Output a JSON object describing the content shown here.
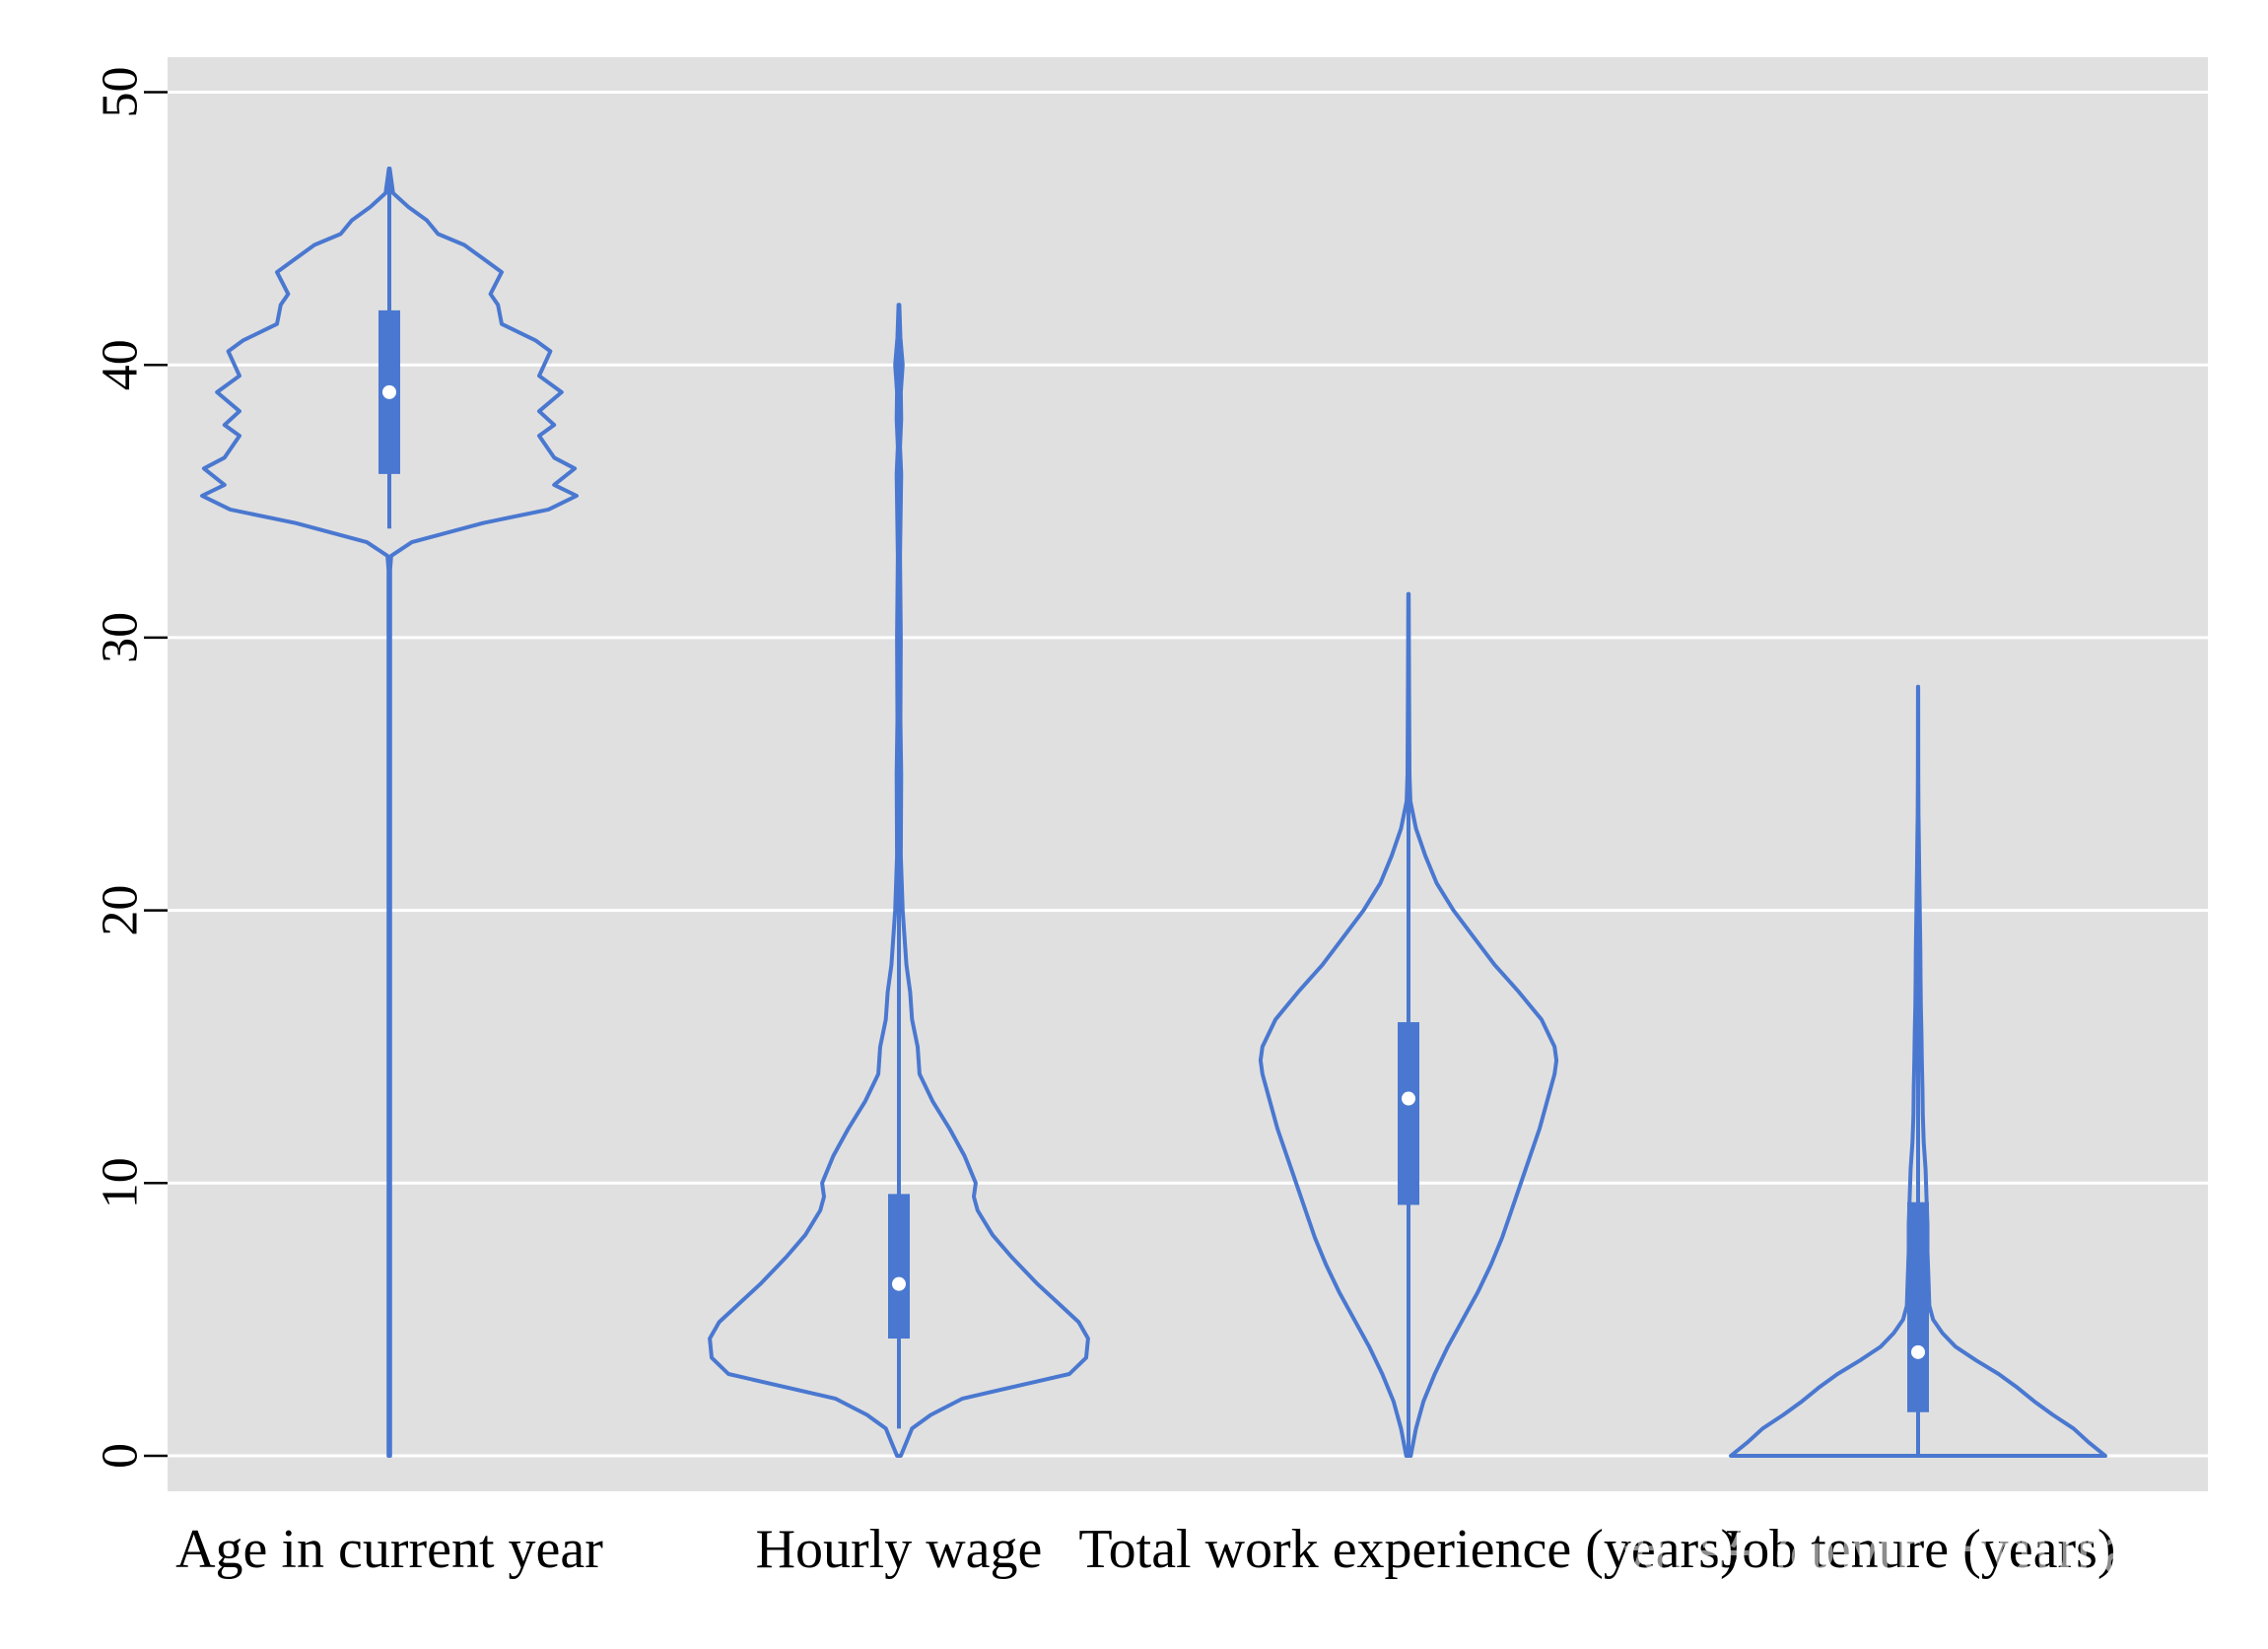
{
  "watermark": "知乎 @Mr Figurant",
  "chart_data": {
    "type": "violin",
    "title": "",
    "xlabel": "",
    "ylabel": "",
    "ylim": [
      0,
      50
    ],
    "yticks": [
      0,
      10,
      20,
      30,
      40,
      50
    ],
    "ytick_labels": [
      "0",
      "10",
      "20",
      "30",
      "40",
      "50"
    ],
    "grid": true,
    "colors": {
      "violin": "#4a78d0",
      "background": "#e0e0e0",
      "grid": "#ffffff",
      "median": "#ffffff"
    },
    "series": [
      {
        "name": "Age in current year",
        "min": 0,
        "q1": 36,
        "median": 39,
        "q3": 42,
        "whisker_low": 34,
        "whisker_high": 46,
        "max": 47.2,
        "density": [
          [
            0,
            0.004
          ],
          [
            10,
            0.004
          ],
          [
            20,
            0.004
          ],
          [
            30,
            0.004
          ],
          [
            32.5,
            0.004
          ],
          [
            33,
            0.01
          ],
          [
            33.5,
            0.12
          ],
          [
            34.2,
            0.5
          ],
          [
            34.7,
            0.85
          ],
          [
            35.2,
            1.0
          ],
          [
            35.6,
            0.88
          ],
          [
            36.2,
            0.99
          ],
          [
            36.6,
            0.88
          ],
          [
            37.4,
            0.8
          ],
          [
            37.8,
            0.88
          ],
          [
            38.3,
            0.8
          ],
          [
            39,
            0.92
          ],
          [
            39.6,
            0.8
          ],
          [
            40.5,
            0.86
          ],
          [
            40.9,
            0.78
          ],
          [
            41.5,
            0.6
          ],
          [
            42.2,
            0.58
          ],
          [
            42.6,
            0.54
          ],
          [
            43.4,
            0.6
          ],
          [
            43.9,
            0.5
          ],
          [
            44.4,
            0.4
          ],
          [
            44.8,
            0.26
          ],
          [
            45.3,
            0.2
          ],
          [
            45.8,
            0.1
          ],
          [
            46.3,
            0.02
          ],
          [
            47.2,
            0.002
          ]
        ]
      },
      {
        "name": "Hourly wage",
        "min": 0,
        "q1": 4.3,
        "median": 6.3,
        "q3": 9.6,
        "whisker_low": 1,
        "whisker_high": 17.5,
        "max": 42.2,
        "density": [
          [
            0,
            0.01
          ],
          [
            0.5,
            0.04
          ],
          [
            1,
            0.07
          ],
          [
            1.5,
            0.17
          ],
          [
            2.1,
            0.34
          ],
          [
            3,
            0.91
          ],
          [
            3.6,
            1.0
          ],
          [
            4.3,
            1.01
          ],
          [
            4.9,
            0.96
          ],
          [
            5.6,
            0.85
          ],
          [
            6.3,
            0.74
          ],
          [
            7.3,
            0.6
          ],
          [
            8.1,
            0.5
          ],
          [
            9,
            0.42
          ],
          [
            9.5,
            0.4
          ],
          [
            10,
            0.41
          ],
          [
            11,
            0.35
          ],
          [
            12,
            0.27
          ],
          [
            13,
            0.18
          ],
          [
            14,
            0.11
          ],
          [
            15,
            0.1
          ],
          [
            16,
            0.07
          ],
          [
            17,
            0.06
          ],
          [
            18,
            0.04
          ],
          [
            19,
            0.03
          ],
          [
            20,
            0.02
          ],
          [
            22,
            0.01
          ],
          [
            25,
            0.012
          ],
          [
            27,
            0.008
          ],
          [
            30,
            0.01
          ],
          [
            33,
            0.006
          ],
          [
            36,
            0.012
          ],
          [
            37,
            0.006
          ],
          [
            38,
            0.012
          ],
          [
            39,
            0.01
          ],
          [
            40,
            0.02
          ],
          [
            41,
            0.008
          ],
          [
            42.2,
            0.002
          ]
        ]
      },
      {
        "name": "Total work experience (years)",
        "min": 0,
        "q1": 9.2,
        "median": 13.1,
        "q3": 15.9,
        "whisker_low": 0,
        "whisker_high": 31.6,
        "max": 31.6,
        "density": [
          [
            0,
            0.012
          ],
          [
            1,
            0.04
          ],
          [
            2,
            0.08
          ],
          [
            3,
            0.14
          ],
          [
            4,
            0.21
          ],
          [
            5,
            0.29
          ],
          [
            6,
            0.37
          ],
          [
            7,
            0.44
          ],
          [
            8,
            0.5
          ],
          [
            9,
            0.55
          ],
          [
            10,
            0.6
          ],
          [
            11,
            0.65
          ],
          [
            12,
            0.7
          ],
          [
            13,
            0.74
          ],
          [
            14,
            0.78
          ],
          [
            14.5,
            0.79
          ],
          [
            15,
            0.78
          ],
          [
            16,
            0.71
          ],
          [
            17,
            0.59
          ],
          [
            18,
            0.46
          ],
          [
            19,
            0.35
          ],
          [
            20,
            0.24
          ],
          [
            21,
            0.15
          ],
          [
            22,
            0.09
          ],
          [
            23,
            0.04
          ],
          [
            24,
            0.01
          ],
          [
            25,
            0.005
          ],
          [
            28,
            0.003
          ],
          [
            31.6,
            0.001
          ]
        ]
      },
      {
        "name": "Job tenure (years)",
        "min": 0,
        "q1": 1.6,
        "median": 3.8,
        "q3": 9.3,
        "whisker_low": 0,
        "whisker_high": 20.9,
        "max": 28.2,
        "density": [
          [
            0,
            1.0
          ],
          [
            0.5,
            0.91
          ],
          [
            1,
            0.83
          ],
          [
            1.5,
            0.72
          ],
          [
            2,
            0.62
          ],
          [
            2.5,
            0.53
          ],
          [
            3,
            0.43
          ],
          [
            3.5,
            0.31
          ],
          [
            4,
            0.2
          ],
          [
            4.5,
            0.13
          ],
          [
            5,
            0.08
          ],
          [
            5.5,
            0.06
          ],
          [
            6.5,
            0.055
          ],
          [
            7.5,
            0.05
          ],
          [
            8.5,
            0.05
          ],
          [
            9.5,
            0.045
          ],
          [
            10.5,
            0.04
          ],
          [
            11.5,
            0.03
          ],
          [
            12.5,
            0.025
          ],
          [
            13.5,
            0.023
          ],
          [
            14.5,
            0.02
          ],
          [
            15.5,
            0.018
          ],
          [
            16.5,
            0.015
          ],
          [
            17.5,
            0.013
          ],
          [
            18.5,
            0.012
          ],
          [
            19.5,
            0.01
          ],
          [
            20.5,
            0.008
          ],
          [
            21.5,
            0.006
          ],
          [
            22.5,
            0.004
          ],
          [
            23.5,
            0.002
          ],
          [
            25,
            0.001
          ],
          [
            28.2,
            0.0005
          ]
        ]
      }
    ]
  }
}
